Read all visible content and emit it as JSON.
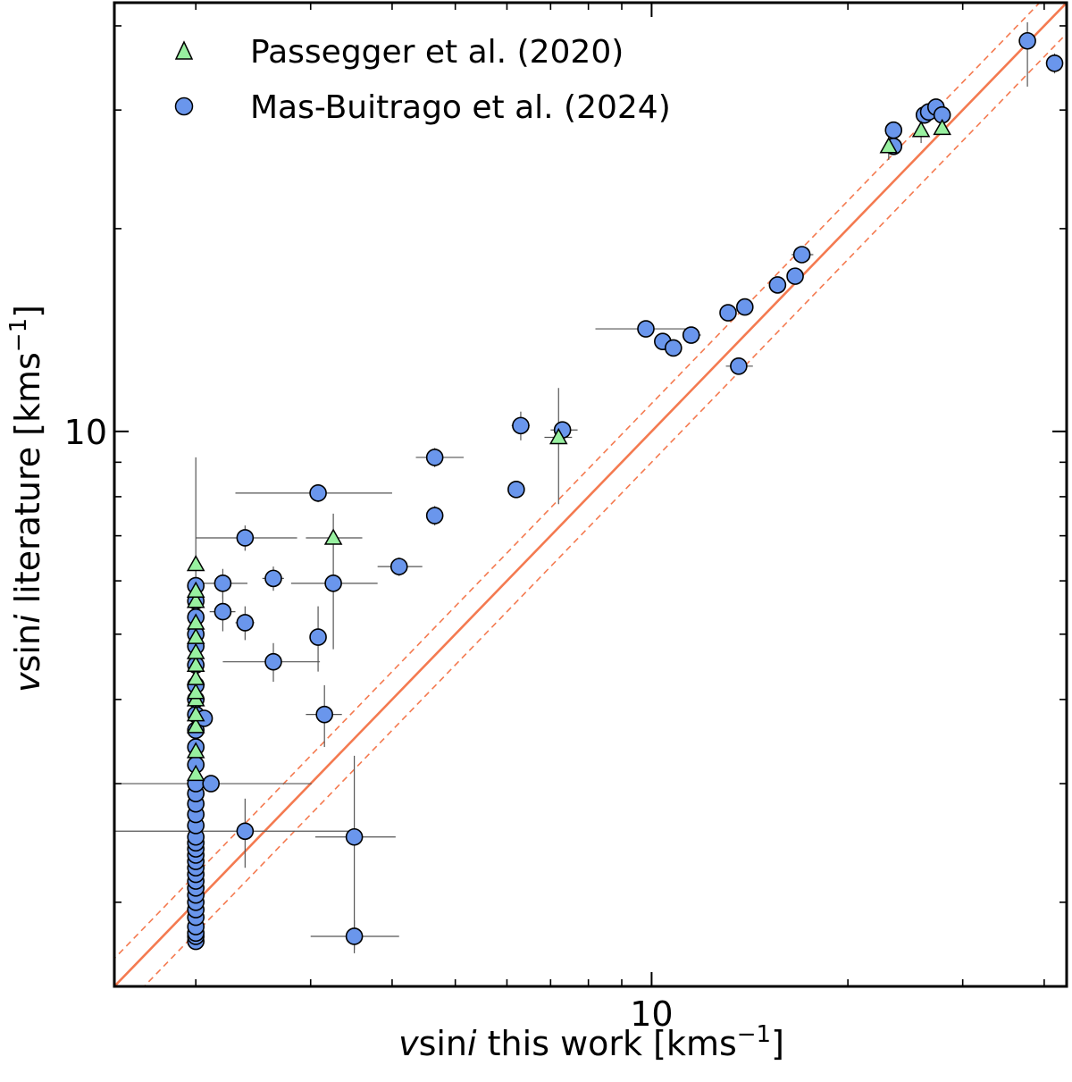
{
  "chart_data": {
    "type": "scatter",
    "xscale": "log",
    "yscale": "log",
    "xlim": [
      1.5,
      43.3
    ],
    "ylim": [
      1.5,
      43.3
    ],
    "x_ticks": [
      {
        "value": 10,
        "label": "10"
      }
    ],
    "y_ticks": [
      {
        "value": 10,
        "label": "10"
      }
    ],
    "x_minor_ticks": [
      2,
      3,
      4,
      5,
      6,
      7,
      8,
      9,
      20,
      30,
      40
    ],
    "y_minor_ticks": [
      2,
      3,
      4,
      5,
      6,
      7,
      8,
      9,
      20,
      30,
      40
    ],
    "xlabel": {
      "v": "v",
      "sin": "sin",
      "i": "i",
      "rest": " this work [kms",
      "exp": "−1",
      "close": "]"
    },
    "ylabel": {
      "v": "v",
      "sin": "sin",
      "i": "i",
      "rest": " literature [kms",
      "exp": "−1",
      "close": "]"
    },
    "legend": {
      "position": "top-left",
      "entries": [
        {
          "label": "Passegger et al. (2020)",
          "marker": "triangle",
          "color": "#98f0a0"
        },
        {
          "label": "Mas-Buitrago et al. (2024)",
          "marker": "circle",
          "color": "#6a96ec"
        }
      ]
    },
    "reference_lines": [
      {
        "name": "one-to-one",
        "slope": 1.0,
        "style": "solid",
        "color": "#f47a50"
      },
      {
        "name": "upper-bound",
        "slope": 1.1,
        "style": "dashed",
        "color": "#f47a50"
      },
      {
        "name": "lower-bound",
        "slope": 0.9,
        "style": "dashed",
        "color": "#f47a50"
      }
    ],
    "series": [
      {
        "name": "Mas-Buitrago et al. (2024)",
        "marker": "circle",
        "color": "#6a96ec",
        "points": [
          {
            "x": 2.0,
            "y": 1.75
          },
          {
            "x": 2.0,
            "y": 1.78
          },
          {
            "x": 2.0,
            "y": 1.8
          },
          {
            "x": 2.0,
            "y": 1.84
          },
          {
            "x": 2.0,
            "y": 1.9
          },
          {
            "x": 2.0,
            "y": 1.95
          },
          {
            "x": 2.0,
            "y": 2.0
          },
          {
            "x": 2.0,
            "y": 2.05
          },
          {
            "x": 2.0,
            "y": 2.1
          },
          {
            "x": 2.0,
            "y": 2.15
          },
          {
            "x": 2.0,
            "y": 2.2
          },
          {
            "x": 2.0,
            "y": 2.25
          },
          {
            "x": 2.0,
            "y": 2.3
          },
          {
            "x": 2.0,
            "y": 2.35
          },
          {
            "x": 2.0,
            "y": 2.4
          },
          {
            "x": 2.0,
            "y": 2.45
          },
          {
            "x": 2.0,
            "y": 2.5
          },
          {
            "x": 2.0,
            "y": 2.6
          },
          {
            "x": 2.0,
            "y": 2.7
          },
          {
            "x": 2.0,
            "y": 2.8
          },
          {
            "x": 2.0,
            "y": 2.9
          },
          {
            "x": 2.0,
            "y": 3.0
          },
          {
            "x": 2.0,
            "y": 3.2
          },
          {
            "x": 2.0,
            "y": 3.4
          },
          {
            "x": 2.0,
            "y": 3.6
          },
          {
            "x": 2.0,
            "y": 3.8
          },
          {
            "x": 2.0,
            "y": 4.0
          },
          {
            "x": 2.0,
            "y": 4.2
          },
          {
            "x": 2.0,
            "y": 4.5
          },
          {
            "x": 2.0,
            "y": 4.8
          },
          {
            "x": 2.0,
            "y": 5.0
          },
          {
            "x": 2.0,
            "y": 5.3
          },
          {
            "x": 2.0,
            "y": 5.6
          },
          {
            "x": 2.0,
            "y": 5.9
          },
          {
            "x": 2.06,
            "y": 3.75,
            "xerr": [
              0.06,
              0.06
            ]
          },
          {
            "x": 2.11,
            "y": 3.0,
            "xerr": [
              0.6,
              0.9
            ]
          },
          {
            "x": 2.2,
            "y": 5.95,
            "xerr": [
              0.16,
              0.2
            ],
            "yerr": [
              0.3,
              0.3
            ]
          },
          {
            "x": 2.2,
            "y": 5.4,
            "xerr": [
              0.1,
              0.1
            ],
            "yerr": [
              0.35,
              0.35
            ]
          },
          {
            "x": 2.38,
            "y": 6.95,
            "xerr": [
              0.38,
              0.48
            ],
            "yerr": [
              0.3,
              0.3
            ]
          },
          {
            "x": 2.38,
            "y": 5.2,
            "xerr": [
              0.08,
              0.08
            ],
            "yerr": [
              0.3,
              0.3
            ]
          },
          {
            "x": 2.38,
            "y": 2.55,
            "xerr": [
              0.88,
              1.12
            ],
            "yerr": [
              0.3,
              0.3
            ]
          },
          {
            "x": 2.63,
            "y": 6.05,
            "xerr": [
              0.1,
              0.1
            ],
            "yerr": [
              0.25,
              0.25
            ]
          },
          {
            "x": 2.63,
            "y": 4.55,
            "xerr": [
              0.43,
              0.47
            ],
            "yerr": [
              0.3,
              0.3
            ]
          },
          {
            "x": 3.08,
            "y": 8.1,
            "xerr": [
              0.78,
              0.92
            ],
            "yerr": [
              0.25,
              0.25
            ]
          },
          {
            "x": 3.08,
            "y": 4.95,
            "xerr": [
              0.08,
              0.08
            ],
            "yerr": [
              0.55,
              0.55
            ]
          },
          {
            "x": 3.15,
            "y": 3.8,
            "xerr": [
              0.2,
              0.2
            ],
            "yerr": [
              0.4,
              0.4
            ]
          },
          {
            "x": 3.25,
            "y": 5.95,
            "xerr": [
              0.45,
              0.55
            ]
          },
          {
            "x": 3.5,
            "y": 2.5,
            "xerr": [
              0.45,
              0.55
            ],
            "yerr": [
              0.8,
              0.8
            ]
          },
          {
            "x": 3.5,
            "y": 1.78,
            "xerr": [
              0.5,
              0.6
            ],
            "yerr": [
              0.1,
              0.1
            ]
          },
          {
            "x": 4.1,
            "y": 6.3,
            "xerr": [
              0.3,
              0.35
            ],
            "yerr": [
              0.2,
              0.2
            ]
          },
          {
            "x": 4.65,
            "y": 9.15,
            "xerr": [
              0.3,
              0.5
            ],
            "yerr": [
              0.3,
              0.3
            ]
          },
          {
            "x": 4.65,
            "y": 7.5,
            "xerr": [
              0.1,
              0.1
            ],
            "yerr": [
              0.25,
              0.25
            ]
          },
          {
            "x": 6.2,
            "y": 8.2,
            "xerr": [
              0.15,
              0.15
            ]
          },
          {
            "x": 6.3,
            "y": 10.2,
            "xerr": [
              0.2,
              0.2
            ],
            "yerr": [
              0.5,
              0.5
            ]
          },
          {
            "x": 7.3,
            "y": 10.05,
            "xerr": [
              0.3,
              0.4
            ]
          },
          {
            "x": 9.8,
            "y": 14.2,
            "xerr": [
              1.6,
              1.9
            ]
          },
          {
            "x": 10.4,
            "y": 13.6,
            "xerr": [
              0.3,
              0.4
            ]
          },
          {
            "x": 10.8,
            "y": 13.3,
            "xerr": [
              0.3,
              0.3
            ]
          },
          {
            "x": 11.5,
            "y": 13.9,
            "xerr": [
              0.35,
              0.4
            ]
          },
          {
            "x": 13.1,
            "y": 15.0
          },
          {
            "x": 13.6,
            "y": 12.5,
            "xerr": [
              0.6,
              0.7
            ]
          },
          {
            "x": 13.9,
            "y": 15.3
          },
          {
            "x": 15.6,
            "y": 16.5
          },
          {
            "x": 16.6,
            "y": 17.0
          },
          {
            "x": 17.0,
            "y": 18.3,
            "xerr": [
              0.6,
              0.7
            ]
          },
          {
            "x": 23.5,
            "y": 26.5
          },
          {
            "x": 23.5,
            "y": 28.0
          },
          {
            "x": 26.2,
            "y": 29.5
          },
          {
            "x": 26.6,
            "y": 29.8
          },
          {
            "x": 27.3,
            "y": 30.3
          },
          {
            "x": 27.9,
            "y": 29.5
          },
          {
            "x": 37.7,
            "y": 38.0,
            "yerr": [
              5.5,
              2.5
            ]
          },
          {
            "x": 41.5,
            "y": 35.2,
            "yerr": [
              1.2,
              1.2
            ]
          }
        ]
      },
      {
        "name": "Passegger et al. (2020)",
        "marker": "triangle",
        "color": "#98f0a0",
        "points": [
          {
            "x": 2.0,
            "y": 3.1
          },
          {
            "x": 2.0,
            "y": 3.35
          },
          {
            "x": 2.0,
            "y": 3.65
          },
          {
            "x": 2.0,
            "y": 3.8
          },
          {
            "x": 2.0,
            "y": 4.0
          },
          {
            "x": 2.0,
            "y": 4.1
          },
          {
            "x": 2.0,
            "y": 4.3
          },
          {
            "x": 2.0,
            "y": 4.5
          },
          {
            "x": 2.0,
            "y": 4.7
          },
          {
            "x": 2.0,
            "y": 4.95
          },
          {
            "x": 2.0,
            "y": 5.2
          },
          {
            "x": 2.0,
            "y": 5.6
          },
          {
            "x": 2.0,
            "y": 5.8
          },
          {
            "x": 2.0,
            "y": 6.35,
            "yerr": [
              4.6,
              2.8
            ]
          },
          {
            "x": 3.25,
            "y": 6.95,
            "xerr": [
              0.3,
              0.35
            ],
            "yerr": [
              2.2,
              0.6
            ]
          },
          {
            "x": 7.2,
            "y": 9.8,
            "xerr": [
              0.35,
              0.35
            ],
            "yerr": [
              2.0,
              1.8
            ]
          },
          {
            "x": 23.1,
            "y": 26.5,
            "yerr": [
              1.2,
              1.2
            ]
          },
          {
            "x": 25.9,
            "y": 28.0,
            "yerr": [
              1.2,
              1.2
            ]
          },
          {
            "x": 27.9,
            "y": 28.2
          }
        ]
      }
    ]
  }
}
